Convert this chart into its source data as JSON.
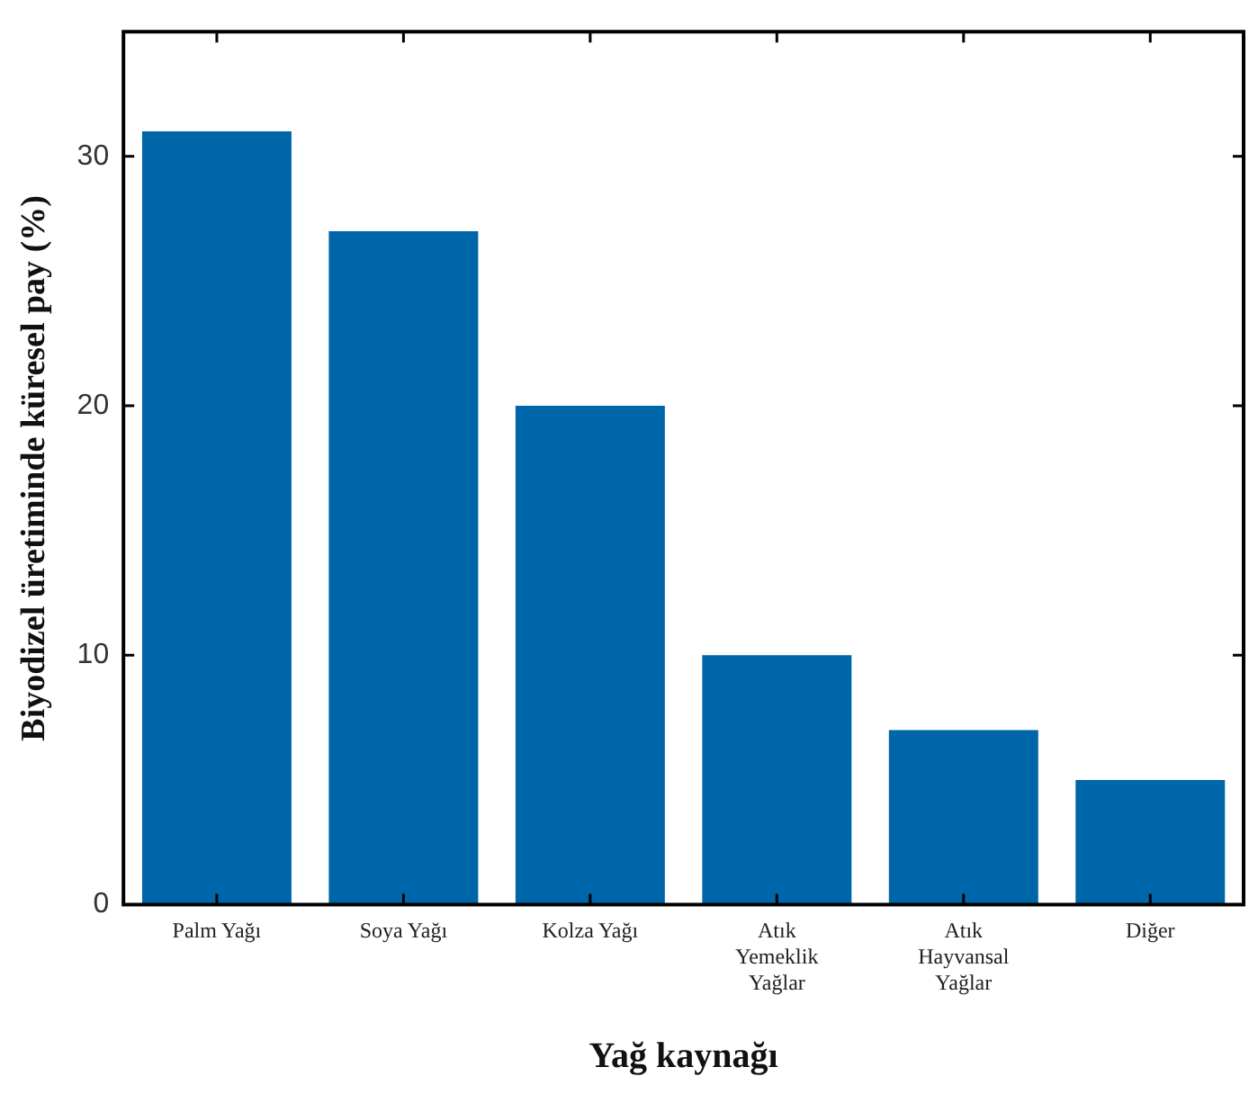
{
  "chart_data": {
    "type": "bar",
    "xlabel": "Yağ kaynağı",
    "ylabel": "Biyodizel üretiminde küresel pay (%)",
    "categories": [
      "Palm Yağı",
      "Soya Yağı",
      "Kolza Yağı",
      "Atık Yemeklik Yağlar",
      "Atık Hayvansal Yağlar",
      "Diğer"
    ],
    "values": [
      31,
      27,
      20,
      10,
      7,
      5
    ],
    "color": "#0066aa",
    "ylim": [
      0,
      35
    ],
    "yticks": [
      0,
      10,
      20,
      30
    ],
    "grid": false,
    "legend": false
  }
}
